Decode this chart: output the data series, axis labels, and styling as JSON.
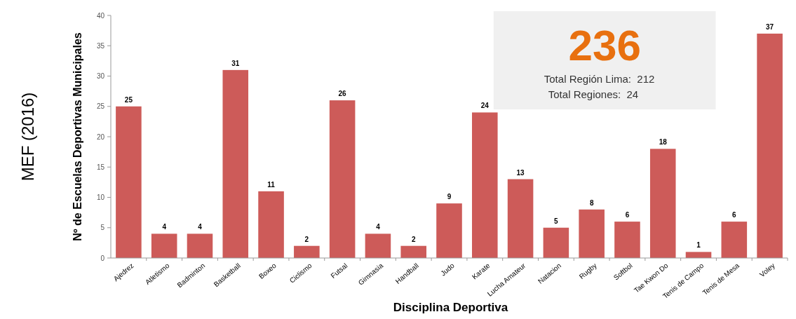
{
  "chart_data": {
    "type": "bar",
    "xlabel": "Disciplina Deportiva",
    "ylabel": "Nº de Escuelas Deportivas Municipales",
    "categories": [
      "Ajedrez",
      "Atletismo",
      "Badminton",
      "Basketball",
      "Boxeo",
      "Ciclismo",
      "Futsal",
      "Gimnasia",
      "Handball",
      "Judo",
      "Karate",
      "Lucha Amateur",
      "Natacion",
      "Rugby",
      "Softbol",
      "Tae Kwon Do",
      "Tenis de Campo",
      "Tenis de Mesa",
      "Voley"
    ],
    "values": [
      25,
      4,
      4,
      31,
      11,
      2,
      26,
      4,
      2,
      9,
      24,
      13,
      5,
      8,
      6,
      18,
      1,
      6,
      37
    ],
    "color": "#cd5b59",
    "data_labels": true,
    "ylim": [
      0,
      40
    ],
    "yticks": [
      0,
      5,
      10,
      15,
      20,
      25,
      30,
      35,
      40
    ],
    "grid": false,
    "annotations": [
      "MEF (2016)",
      "236",
      "Total Región Lima:  212",
      "Total Regiones:  24"
    ]
  }
}
